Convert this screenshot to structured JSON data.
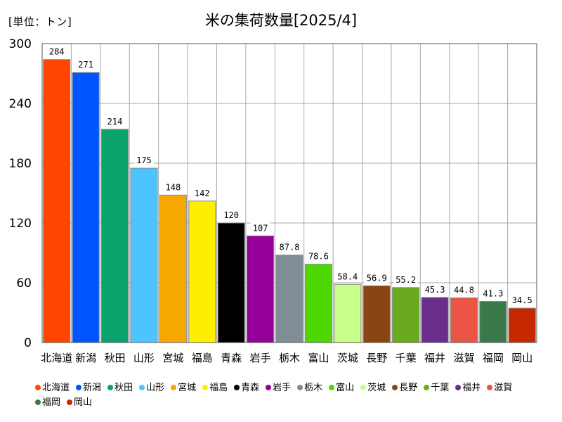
{
  "chart_data": {
    "type": "bar",
    "title": "米の集荷数量[2025/4]",
    "unit_label": "[単位：トン]",
    "categories": [
      "北海道",
      "新潟",
      "秋田",
      "山形",
      "宮城",
      "福島",
      "青森",
      "岩手",
      "栃木",
      "富山",
      "茨城",
      "長野",
      "千葉",
      "福井",
      "滋賀",
      "福岡",
      "岡山"
    ],
    "values": [
      284,
      271,
      214,
      175,
      148,
      142,
      120,
      107,
      87.8,
      78.6,
      58.4,
      56.9,
      55.2,
      45.3,
      44.8,
      41.3,
      34.5
    ],
    "value_labels": [
      "284",
      "271",
      "214",
      "175",
      "148",
      "142",
      "120",
      "107",
      "87.8",
      "78.6",
      "58.4",
      "56.9",
      "55.2",
      "45.3",
      "44.8",
      "41.3",
      "34.5"
    ],
    "colors": [
      "#ff4500",
      "#0055ff",
      "#0aa36c",
      "#4cc4ff",
      "#f6a800",
      "#ffee00",
      "#000000",
      "#95009a",
      "#7f8d96",
      "#4cd800",
      "#c8ff8a",
      "#8b4513",
      "#6aaa1e",
      "#6a2d8b",
      "#ea5545",
      "#3a7a4a",
      "#c82800"
    ],
    "ylim": [
      0,
      300
    ],
    "yticks": [
      0,
      60,
      120,
      180,
      240,
      300
    ],
    "grid": true,
    "legend_position": "bottom"
  }
}
